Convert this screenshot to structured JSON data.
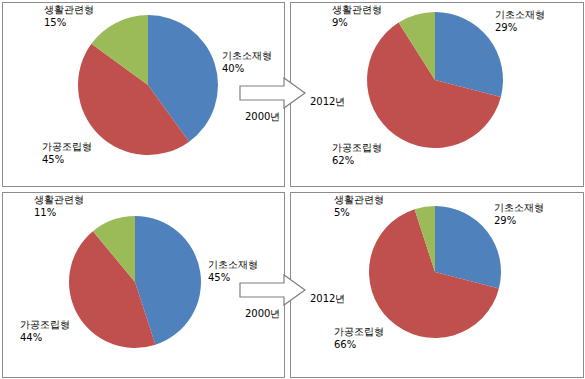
{
  "chart_data": [
    {
      "type": "pie",
      "title": "2000년",
      "categories": [
        "기초소재형",
        "가공조립형",
        "생활관련형"
      ],
      "values": [
        40,
        45,
        15
      ],
      "value_labels": [
        "40%",
        "45%",
        "15%"
      ],
      "colors": [
        "#4f81bd",
        "#c0504d",
        "#9bbb59"
      ],
      "data_labels": true
    },
    {
      "type": "pie",
      "title": "2012년",
      "categories": [
        "기초소재형",
        "가공조립형",
        "생활관련형"
      ],
      "values": [
        29,
        62,
        9
      ],
      "value_labels": [
        "29%",
        "62%",
        "9%"
      ],
      "colors": [
        "#4f81bd",
        "#c0504d",
        "#9bbb59"
      ],
      "data_labels": true
    },
    {
      "type": "pie",
      "title": "2000년",
      "categories": [
        "기초소재형",
        "가공조립형",
        "생활관련형"
      ],
      "values": [
        45,
        44,
        11
      ],
      "value_labels": [
        "45%",
        "44%",
        "11%"
      ],
      "colors": [
        "#4f81bd",
        "#c0504d",
        "#9bbb59"
      ],
      "data_labels": true
    },
    {
      "type": "pie",
      "title": "2012년",
      "categories": [
        "기초소재형",
        "가공조립형",
        "생활관련형"
      ],
      "values": [
        29,
        66,
        5
      ],
      "value_labels": [
        "29%",
        "66%",
        "5%"
      ],
      "colors": [
        "#4f81bd",
        "#c0504d",
        "#9bbb59"
      ],
      "data_labels": true
    }
  ]
}
